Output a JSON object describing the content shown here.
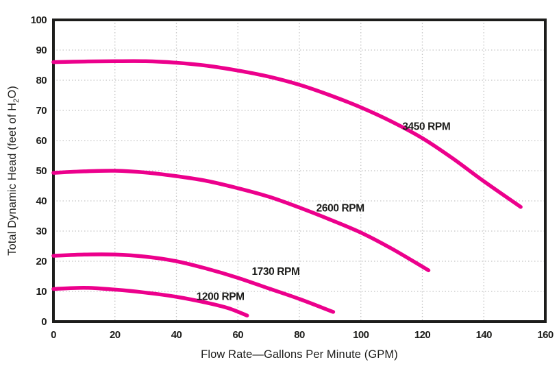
{
  "chart_data": {
    "type": "line",
    "title": "",
    "xlabel": "Flow Rate—Gallons Per Minute (GPM)",
    "ylabel": "Total Dynamic Head (feet of H2O)",
    "ylabel_parts": [
      "Total Dynamic Head (feet of H",
      "2",
      "O)"
    ],
    "xlim": [
      0,
      160
    ],
    "ylim": [
      0,
      100
    ],
    "x_ticks": [
      0,
      20,
      40,
      60,
      80,
      100,
      120,
      140,
      160
    ],
    "y_ticks": [
      0,
      10,
      20,
      30,
      40,
      50,
      60,
      70,
      80,
      90,
      100
    ],
    "grid": true,
    "legend_position": "inline-labels",
    "line_color": "#EC008C",
    "grid_color": "#C4C4C4",
    "axis_color": "#1D1D1B",
    "series": [
      {
        "name": "3450 RPM",
        "label_pos": [
          113.5,
          63.5
        ],
        "points": [
          [
            0,
            86
          ],
          [
            10,
            86.2
          ],
          [
            20,
            86.3
          ],
          [
            30,
            86.3
          ],
          [
            40,
            85.8
          ],
          [
            50,
            84.8
          ],
          [
            60,
            83.2
          ],
          [
            70,
            81.2
          ],
          [
            80,
            78.5
          ],
          [
            90,
            75
          ],
          [
            100,
            71
          ],
          [
            110,
            66.3
          ],
          [
            120,
            60.8
          ],
          [
            130,
            54
          ],
          [
            140,
            46.5
          ],
          [
            152,
            38
          ]
        ]
      },
      {
        "name": "2600 RPM",
        "label_pos": [
          85.5,
          36.5
        ],
        "points": [
          [
            0,
            49.3
          ],
          [
            10,
            49.8
          ],
          [
            20,
            50
          ],
          [
            30,
            49.4
          ],
          [
            40,
            48.2
          ],
          [
            50,
            46.6
          ],
          [
            60,
            44.2
          ],
          [
            70,
            41.4
          ],
          [
            80,
            37.8
          ],
          [
            90,
            33.8
          ],
          [
            100,
            29.5
          ],
          [
            110,
            24.2
          ],
          [
            122,
            17
          ]
        ]
      },
      {
        "name": "1730 RPM",
        "label_pos": [
          64.5,
          15.5
        ],
        "points": [
          [
            0,
            21.8
          ],
          [
            10,
            22.2
          ],
          [
            20,
            22.2
          ],
          [
            30,
            21.5
          ],
          [
            40,
            20
          ],
          [
            50,
            17.5
          ],
          [
            60,
            14.5
          ],
          [
            70,
            11
          ],
          [
            80,
            7.5
          ],
          [
            91,
            3.2
          ]
        ]
      },
      {
        "name": "1200 RPM",
        "label_pos": [
          46.5,
          7.2
        ],
        "points": [
          [
            0,
            10.8
          ],
          [
            10,
            11.2
          ],
          [
            20,
            10.6
          ],
          [
            30,
            9.6
          ],
          [
            40,
            8.2
          ],
          [
            50,
            6.2
          ],
          [
            57,
            4.4
          ],
          [
            63,
            2
          ]
        ]
      }
    ]
  }
}
